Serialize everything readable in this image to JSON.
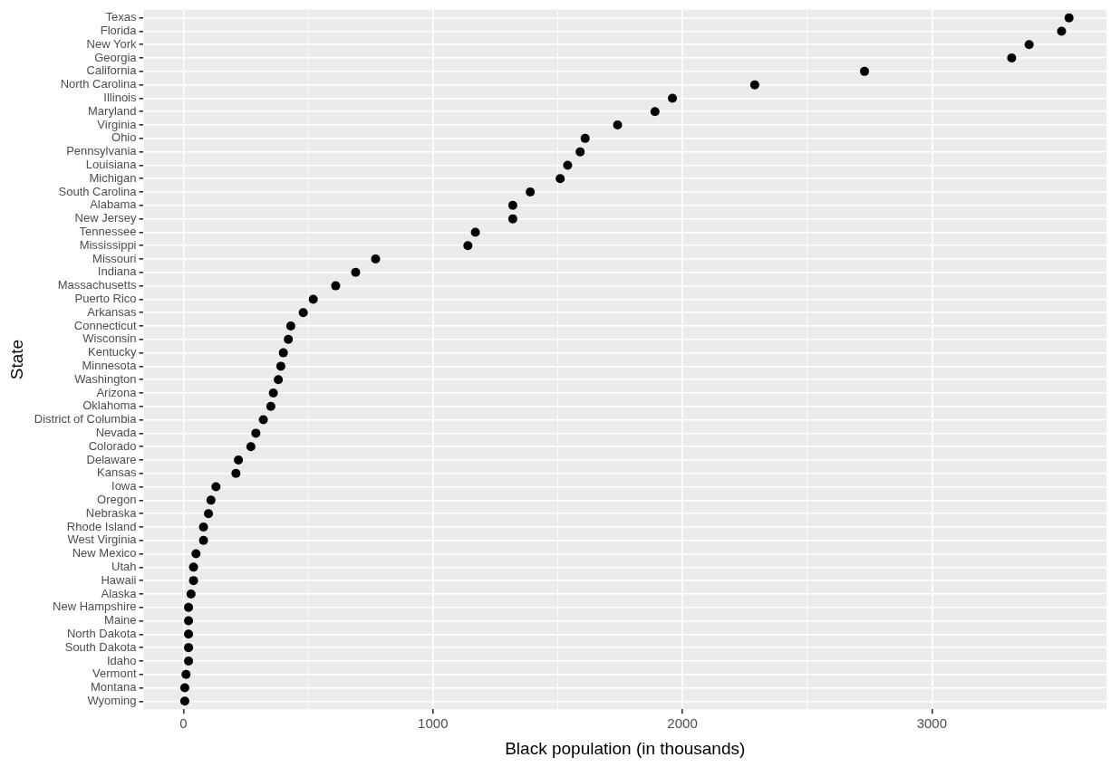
{
  "chart_data": {
    "type": "scatter",
    "xlabel": "Black population (in thousands)",
    "ylabel": "State",
    "categories": [
      "Texas",
      "Florida",
      "New York",
      "Georgia",
      "California",
      "North Carolina",
      "Illinois",
      "Maryland",
      "Virginia",
      "Ohio",
      "Pennsylvania",
      "Louisiana",
      "Michigan",
      "South Carolina",
      "Alabama",
      "New Jersey",
      "Tennessee",
      "Mississippi",
      "Missouri",
      "Indiana",
      "Massachusetts",
      "Puerto Rico",
      "Arkansas",
      "Connecticut",
      "Wisconsin",
      "Kentucky",
      "Minnesota",
      "Washington",
      "Arizona",
      "Oklahoma",
      "District of Columbia",
      "Nevada",
      "Colorado",
      "Delaware",
      "Kansas",
      "Iowa",
      "Oregon",
      "Nebraska",
      "Rhode Island",
      "West Virginia",
      "New Mexico",
      "Utah",
      "Hawaii",
      "Alaska",
      "New Hampshire",
      "Maine",
      "North Dakota",
      "South Dakota",
      "Idaho",
      "Vermont",
      "Montana",
      "Wyoming"
    ],
    "series": [
      {
        "color": "#000000",
        "values": [
          3550,
          3520,
          3390,
          3320,
          2730,
          2290,
          1960,
          1890,
          1740,
          1610,
          1590,
          1540,
          1510,
          1390,
          1320,
          1320,
          1170,
          1140,
          770,
          690,
          610,
          520,
          480,
          430,
          420,
          400,
          390,
          380,
          360,
          350,
          320,
          290,
          270,
          220,
          210,
          130,
          110,
          100,
          80,
          80,
          50,
          40,
          40,
          30,
          20,
          20,
          20,
          20,
          20,
          10,
          5,
          5
        ]
      }
    ],
    "orientation": "horizontal",
    "xlim": [
      -160,
      3700
    ],
    "xticks": [
      0,
      1000,
      2000,
      3000
    ],
    "grid": true,
    "marker": "circle",
    "legend": false
  }
}
